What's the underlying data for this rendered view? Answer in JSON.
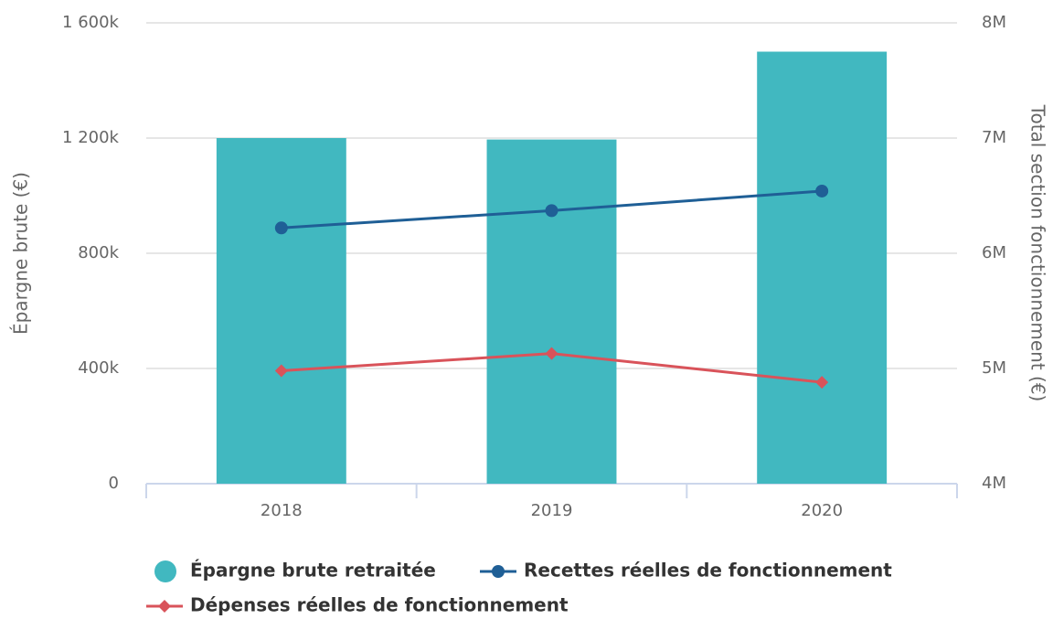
{
  "chart_data": {
    "type": "bar-line",
    "categories": [
      "2018",
      "2019",
      "2020"
    ],
    "ylabel": "Épargne brute (€)",
    "y2label": "Total section fonctionnement (€)",
    "ylim": [
      0,
      1600000
    ],
    "yticks": [
      0,
      {
        "value": 400000,
        "label": "400k"
      },
      {
        "value": 800000,
        "label": "800k"
      },
      {
        "value": 1200000,
        "label": "1 200k"
      },
      {
        "value": 1600000,
        "label": "1 600k"
      }
    ],
    "y2lim": [
      4000000,
      8000000
    ],
    "y2ticks": [
      {
        "value": 4000000,
        "label": "4M"
      },
      {
        "value": 5000000,
        "label": "5M"
      },
      {
        "value": 6000000,
        "label": "6M"
      },
      {
        "value": 7000000,
        "label": "7M"
      },
      {
        "value": 8000000,
        "label": "8M"
      }
    ],
    "grid": true,
    "series": [
      {
        "name": "Épargne brute retraitée",
        "type": "bar",
        "color": "#41b8c0",
        "values": [
          1200000,
          1195000,
          1500000
        ]
      },
      {
        "name": "Recettes réelles de fonctionnement",
        "type": "line",
        "marker": "circle",
        "axis": "y2",
        "color": "#1f5f96",
        "values": [
          6220000,
          6370000,
          6540000
        ]
      },
      {
        "name": "Dépenses réelles de fonctionnement",
        "type": "line",
        "marker": "diamond",
        "axis": "y2",
        "color": "#d9535a",
        "values": [
          4980000,
          5130000,
          4880000
        ]
      }
    ]
  }
}
